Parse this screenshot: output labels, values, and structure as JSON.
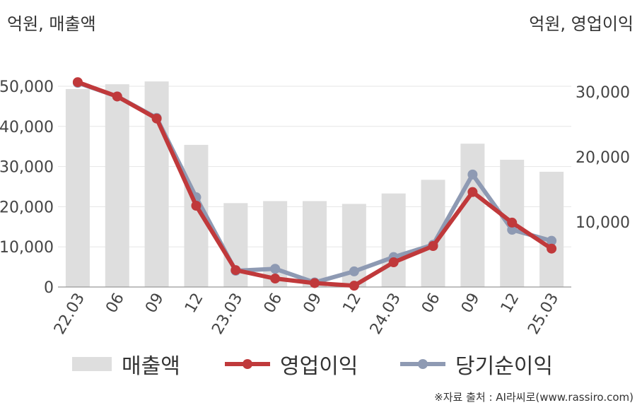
{
  "units": {
    "left": "억원, 매출액",
    "right": "억원, 영업이익"
  },
  "source": "※자료 출처 : AI라씨로(www.rassiro.com)",
  "colors": {
    "revenue": "#dedede",
    "operating_profit": "#c0393b",
    "net_income": "#8e9ab3"
  },
  "chart_data": {
    "type": "bar+line",
    "categories": [
      "22.03",
      "06",
      "09",
      "12",
      "23.03",
      "06",
      "09",
      "12",
      "24.03",
      "06",
      "09",
      "12",
      "25.03"
    ],
    "left_axis": {
      "label": "억원, 매출액",
      "ylim": [
        0,
        50000
      ],
      "ticks": [
        "0",
        "10,000",
        "20,000",
        "30,000",
        "40,000",
        "50,000"
      ]
    },
    "right_axis": {
      "label": "억원, 영업이익",
      "ylim": [
        0,
        30000
      ],
      "ticks": [
        "10,000",
        "20,000",
        "30,000"
      ]
    },
    "series": [
      {
        "name": "매출액",
        "type": "bar",
        "axis": "left",
        "values": [
          49300,
          50500,
          51200,
          35400,
          20900,
          21400,
          21400,
          20700,
          23300,
          26700,
          35700,
          31700,
          28700
        ]
      },
      {
        "name": "영업이익",
        "type": "line",
        "axis": "right",
        "values": [
          31500,
          29300,
          25900,
          12500,
          2600,
          1300,
          600,
          200,
          3800,
          6300,
          14600,
          9900,
          5900
        ]
      },
      {
        "name": "당기순이익",
        "type": "line",
        "axis": "right",
        "values": [
          31400,
          29300,
          26000,
          13800,
          2500,
          2800,
          700,
          2400,
          4600,
          6500,
          17300,
          8800,
          7100
        ]
      }
    ],
    "legend": {
      "position": "bottom",
      "entries": [
        "매출액",
        "영업이익",
        "당기순이익"
      ]
    },
    "grid": true
  }
}
